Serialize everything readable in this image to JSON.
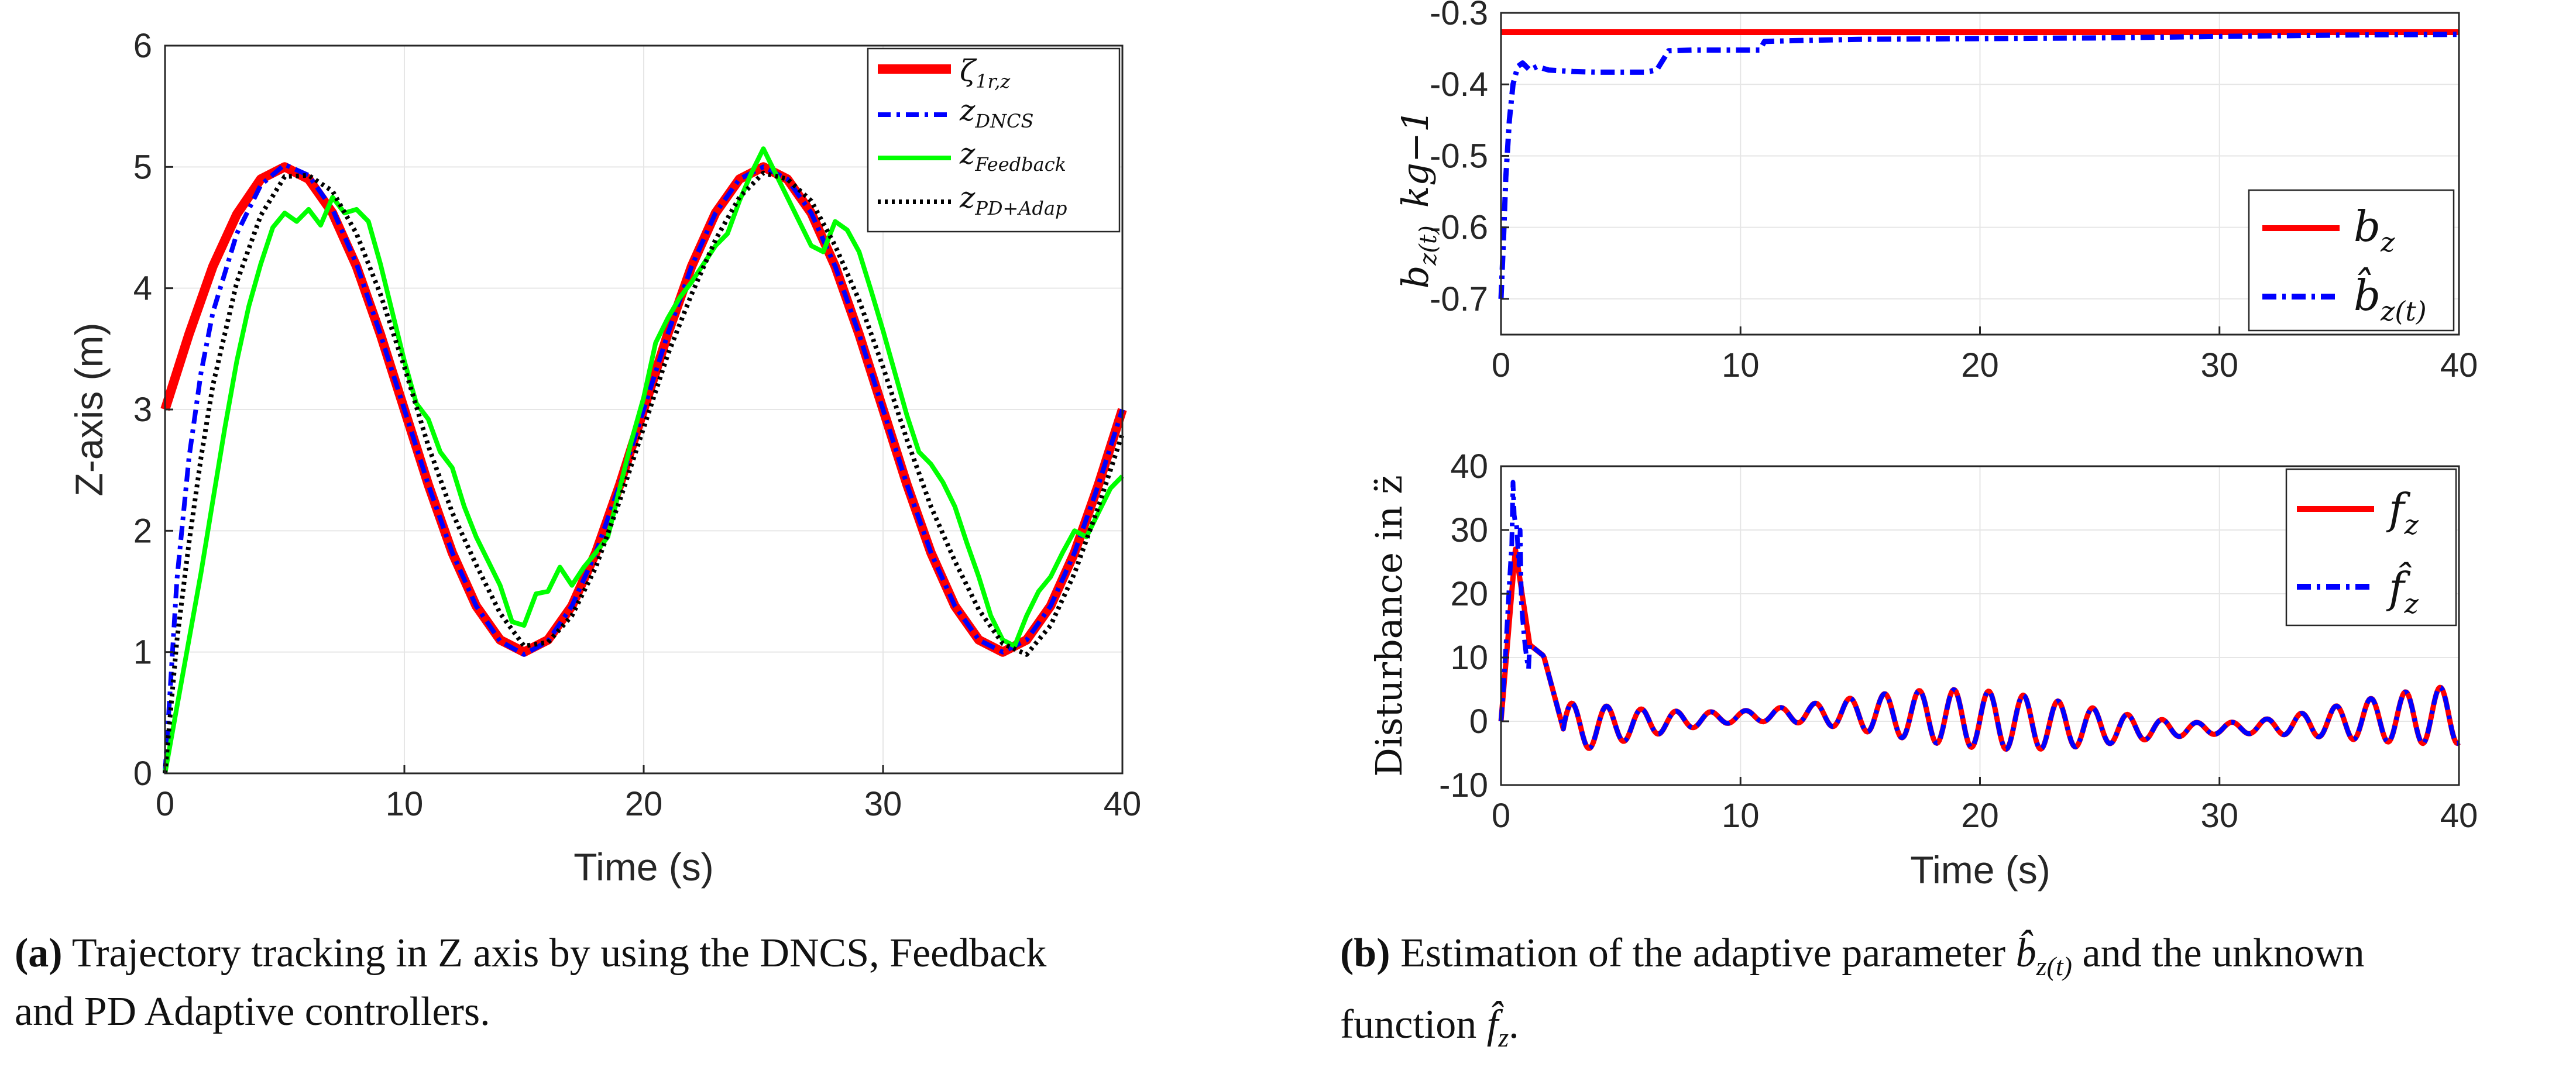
{
  "chart_data": [
    {
      "id": "a",
      "type": "line",
      "xlabel": "Time (s)",
      "ylabel": "Z-axis (m)",
      "xlim": [
        0,
        40
      ],
      "ylim": [
        0,
        6
      ],
      "xticks": [
        "0",
        "10",
        "20",
        "30",
        "40"
      ],
      "yticks": [
        "0",
        "1",
        "2",
        "3",
        "4",
        "5",
        "6"
      ],
      "grid": true,
      "legend_position": "top-right",
      "series": [
        {
          "name": "ζ1r,z",
          "label_main": "ζ",
          "label_sub": "1r,z",
          "color": "#ff0000",
          "style": "solid",
          "x": [
            0,
            1,
            2,
            3,
            4,
            5,
            6,
            7,
            8,
            9,
            10,
            11,
            12,
            13,
            14,
            15,
            16,
            17,
            18,
            19,
            20,
            21,
            22,
            23,
            24,
            25,
            26,
            27,
            28,
            29,
            30,
            31,
            32,
            33,
            34,
            35,
            36,
            37,
            38,
            39,
            40
          ],
          "y": [
            3.0,
            3.62,
            4.18,
            4.61,
            4.9,
            5.0,
            4.9,
            4.62,
            4.18,
            3.62,
            3.0,
            2.38,
            1.82,
            1.38,
            1.1,
            1.0,
            1.1,
            1.38,
            1.82,
            2.38,
            3.0,
            3.62,
            4.18,
            4.62,
            4.9,
            5.0,
            4.9,
            4.62,
            4.18,
            3.62,
            3.0,
            2.38,
            1.82,
            1.38,
            1.1,
            1.0,
            1.1,
            1.38,
            1.82,
            2.38,
            3.0
          ]
        },
        {
          "name": "zDNCS",
          "label_main": "z",
          "label_sub": "DNCS",
          "color": "#0000ff",
          "style": "dashdot",
          "x": [
            0,
            0.5,
            1,
            1.5,
            2,
            3,
            4,
            5,
            6,
            7,
            8,
            9,
            10,
            11,
            12,
            13,
            14,
            15,
            16,
            17,
            18,
            19,
            20,
            21,
            22,
            23,
            24,
            25,
            26,
            27,
            28,
            29,
            30,
            31,
            32,
            33,
            34,
            35,
            36,
            37,
            38,
            39,
            40
          ],
          "y": [
            0,
            1.6,
            2.6,
            3.3,
            3.8,
            4.45,
            4.85,
            5.02,
            4.93,
            4.65,
            4.2,
            3.62,
            3.0,
            2.38,
            1.82,
            1.38,
            1.09,
            0.98,
            1.09,
            1.38,
            1.82,
            2.38,
            3.0,
            3.62,
            4.18,
            4.62,
            4.9,
            5.0,
            4.9,
            4.62,
            4.18,
            3.62,
            3.0,
            2.38,
            1.82,
            1.38,
            1.1,
            1.0,
            1.1,
            1.38,
            1.82,
            2.38,
            3.0
          ]
        },
        {
          "name": "zFeedback",
          "label_main": "z",
          "label_sub": "Feedback",
          "color": "#00ff00",
          "style": "solid",
          "x": [
            0,
            0.5,
            1,
            1.5,
            2,
            2.5,
            3,
            3.5,
            4,
            4.5,
            5,
            5.5,
            6,
            6.5,
            7,
            7.5,
            8,
            8.5,
            9,
            9.5,
            10,
            10.5,
            11,
            11.5,
            12,
            12.5,
            13,
            13.5,
            14,
            14.5,
            15,
            15.5,
            16,
            16.5,
            17,
            17.5,
            18,
            18.5,
            19,
            19.5,
            20,
            20.5,
            21,
            21.5,
            22,
            22.5,
            23,
            23.5,
            24,
            24.5,
            25,
            25.5,
            26,
            26.5,
            27,
            27.5,
            28,
            28.5,
            29,
            29.5,
            30,
            30.5,
            31,
            31.5,
            32,
            32.5,
            33,
            33.5,
            34,
            34.5,
            35,
            35.5,
            36,
            36.5,
            37,
            37.5,
            38,
            38.5,
            39,
            39.5,
            40
          ],
          "y": [
            0,
            0.55,
            1.1,
            1.65,
            2.25,
            2.85,
            3.4,
            3.85,
            4.2,
            4.5,
            4.62,
            4.55,
            4.65,
            4.52,
            4.75,
            4.62,
            4.65,
            4.55,
            4.2,
            3.8,
            3.4,
            3.05,
            2.92,
            2.65,
            2.52,
            2.2,
            1.95,
            1.75,
            1.55,
            1.25,
            1.22,
            1.48,
            1.5,
            1.7,
            1.55,
            1.7,
            1.82,
            1.95,
            2.35,
            2.75,
            3.1,
            3.55,
            3.75,
            3.92,
            4.05,
            4.2,
            4.35,
            4.45,
            4.72,
            4.95,
            5.15,
            4.95,
            4.75,
            4.55,
            4.35,
            4.3,
            4.55,
            4.48,
            4.3,
            3.98,
            3.65,
            3.3,
            2.95,
            2.65,
            2.55,
            2.4,
            2.2,
            1.9,
            1.62,
            1.3,
            1.1,
            1.05,
            1.3,
            1.5,
            1.62,
            1.82,
            2.0,
            1.95,
            2.15,
            2.35,
            2.45
          ]
        },
        {
          "name": "zPD+Adap",
          "label_main": "z",
          "label_sub": "PD+Adap",
          "color": "#000000",
          "style": "dotted",
          "x": [
            0,
            0.5,
            1,
            1.5,
            2,
            3,
            4,
            5,
            6,
            7,
            8,
            9,
            10,
            11,
            12,
            13,
            14,
            15,
            16,
            17,
            18,
            19,
            20,
            21,
            22,
            23,
            24,
            25,
            26,
            27,
            28,
            29,
            30,
            31,
            32,
            33,
            34,
            35,
            36,
            37,
            38,
            39,
            40
          ],
          "y": [
            0,
            1.1,
            1.9,
            2.6,
            3.2,
            4.05,
            4.6,
            4.92,
            4.93,
            4.8,
            4.45,
            3.95,
            3.35,
            2.7,
            2.15,
            1.72,
            1.32,
            1.05,
            1.08,
            1.3,
            1.7,
            2.25,
            2.85,
            3.45,
            3.95,
            4.4,
            4.75,
            4.95,
            4.9,
            4.72,
            4.35,
            3.9,
            3.35,
            2.75,
            2.2,
            1.75,
            1.35,
            1.07,
            0.98,
            1.22,
            1.65,
            2.2,
            2.8
          ]
        }
      ]
    },
    {
      "id": "b-top",
      "type": "line",
      "xlabel": "",
      "ylabel_main": "b",
      "ylabel_sub": "z(t)",
      "ylabel_unit": "kg−1",
      "xlim": [
        0,
        40
      ],
      "ylim": [
        -0.75,
        -0.3
      ],
      "xticks": [
        "0",
        "10",
        "20",
        "30",
        "40"
      ],
      "yticks": [
        "-0.3",
        "-0.4",
        "-0.5",
        "-0.6",
        "-0.7"
      ],
      "grid": true,
      "legend_position": "bottom-right",
      "series": [
        {
          "name": "bz",
          "label_main": "b",
          "label_sub": "z",
          "color": "#ff0000",
          "style": "solid",
          "x": [
            0,
            40
          ],
          "y": [
            -0.327,
            -0.327
          ]
        },
        {
          "name": "b̂z(t)",
          "label_main": "b̂",
          "label_sub": "z(t)",
          "color": "#0000ff",
          "style": "dashdot",
          "x": [
            0,
            0.1,
            0.2,
            0.35,
            0.5,
            0.7,
            0.9,
            1.2,
            1.5,
            2,
            3,
            4,
            5,
            6,
            6.5,
            7,
            8,
            10,
            10.8,
            11,
            12,
            15,
            20,
            25,
            30,
            35,
            40
          ],
          "y": [
            -0.7,
            -0.62,
            -0.53,
            -0.45,
            -0.4,
            -0.375,
            -0.37,
            -0.38,
            -0.375,
            -0.38,
            -0.382,
            -0.383,
            -0.383,
            -0.383,
            -0.38,
            -0.353,
            -0.352,
            -0.352,
            -0.352,
            -0.34,
            -0.339,
            -0.337,
            -0.336,
            -0.335,
            -0.333,
            -0.331,
            -0.33
          ]
        }
      ]
    },
    {
      "id": "b-bottom",
      "type": "line",
      "xlabel": "Time (s)",
      "ylabel": "Disturbance in z̈",
      "xlim": [
        0,
        40
      ],
      "ylim": [
        -10,
        40
      ],
      "xticks": [
        "0",
        "10",
        "20",
        "30",
        "40"
      ],
      "yticks": [
        "40",
        "30",
        "20",
        "10",
        "0",
        "-10"
      ],
      "grid": true,
      "legend_position": "top-right",
      "series": [
        {
          "name": "fz",
          "label_main": "f",
          "label_sub": "z",
          "color": "#ff0000",
          "style": "solid"
        },
        {
          "name": "f̂z",
          "label_main": "f̂",
          "label_sub": "z",
          "color": "#0000ff",
          "style": "dashdot"
        }
      ]
    }
  ],
  "captions": {
    "a_tag": "(a)",
    "a_line1": "Trajectory tracking in Z axis by using the DNCS, Feedback",
    "a_line2": "and PD Adaptive controllers.",
    "b_tag": "(b)",
    "b_line1_pre": "Estimation of the adaptive parameter",
    "b_line1_sym": "b̂",
    "b_line1_sub": "z(t)",
    "b_line1_post": "and the unknown",
    "b_line2_pre": "function",
    "b_line2_sym": "f̂",
    "b_line2_sub": "z",
    "b_line2_post": "."
  }
}
